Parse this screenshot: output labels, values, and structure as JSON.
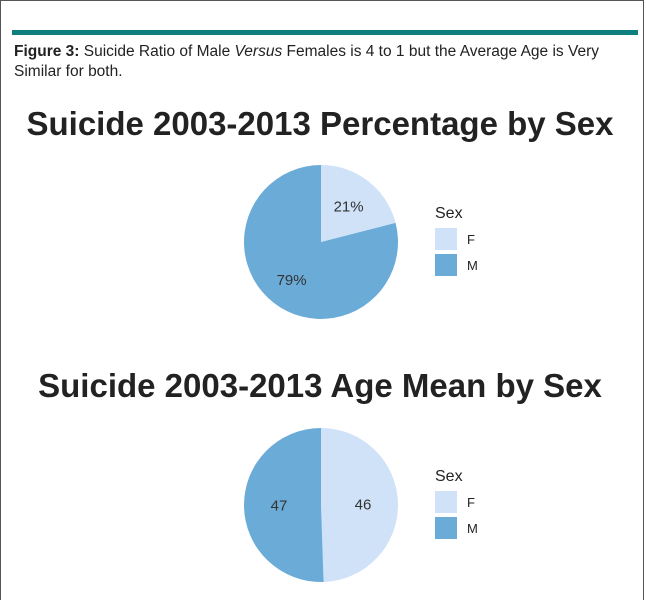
{
  "caption": {
    "label": "Figure 3:",
    "text_part1": " Suicide Ratio of Male ",
    "text_italic": "Versus",
    "text_part2": " Females is 4 to 1 but the Average Age is Very Similar for both."
  },
  "colors": {
    "accent_bar": "#0f7f7d",
    "F": "#cfe2f8",
    "M": "#6aabd8"
  },
  "chart_data": [
    {
      "type": "pie",
      "title": "Suicide 2003-2013 Percentage by Sex",
      "legend_title": "Sex",
      "legend_position": "right",
      "categories": [
        "F",
        "M"
      ],
      "values": [
        21,
        79
      ],
      "labels": [
        "21%",
        "79%"
      ]
    },
    {
      "type": "pie",
      "title": "Suicide 2003-2013 Age Mean by Sex",
      "legend_title": "Sex",
      "legend_position": "right",
      "categories": [
        "F",
        "M"
      ],
      "values": [
        46,
        47
      ],
      "labels": [
        "46",
        "47"
      ]
    }
  ]
}
